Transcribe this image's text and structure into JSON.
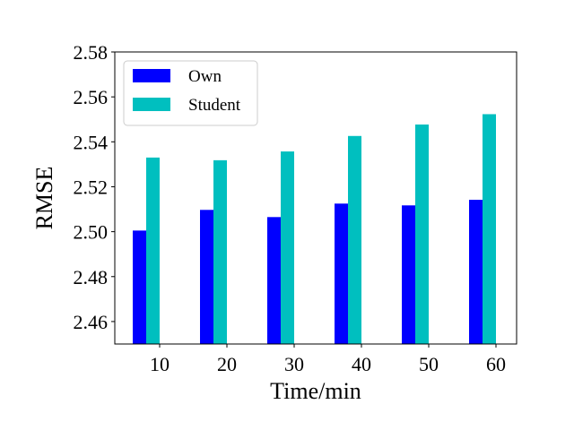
{
  "chart_data": {
    "type": "bar",
    "title": "",
    "xlabel": "Time/min",
    "ylabel": "RMSE",
    "categories": [
      "10",
      "20",
      "30",
      "40",
      "50",
      "60"
    ],
    "series": [
      {
        "name": "Own",
        "color": "#0000ff",
        "values": [
          2.5005,
          2.5097,
          2.5065,
          2.5125,
          2.5117,
          2.5142
        ]
      },
      {
        "name": "Student",
        "color": "#00bfbf",
        "values": [
          2.533,
          2.5318,
          2.5357,
          2.5426,
          2.5477,
          2.5523
        ]
      }
    ],
    "ylim": [
      2.45,
      2.58
    ],
    "yticks": [
      "2.46",
      "2.48",
      "2.50",
      "2.52",
      "2.54",
      "2.56",
      "2.58"
    ],
    "grid": false,
    "legend": "top-left"
  }
}
